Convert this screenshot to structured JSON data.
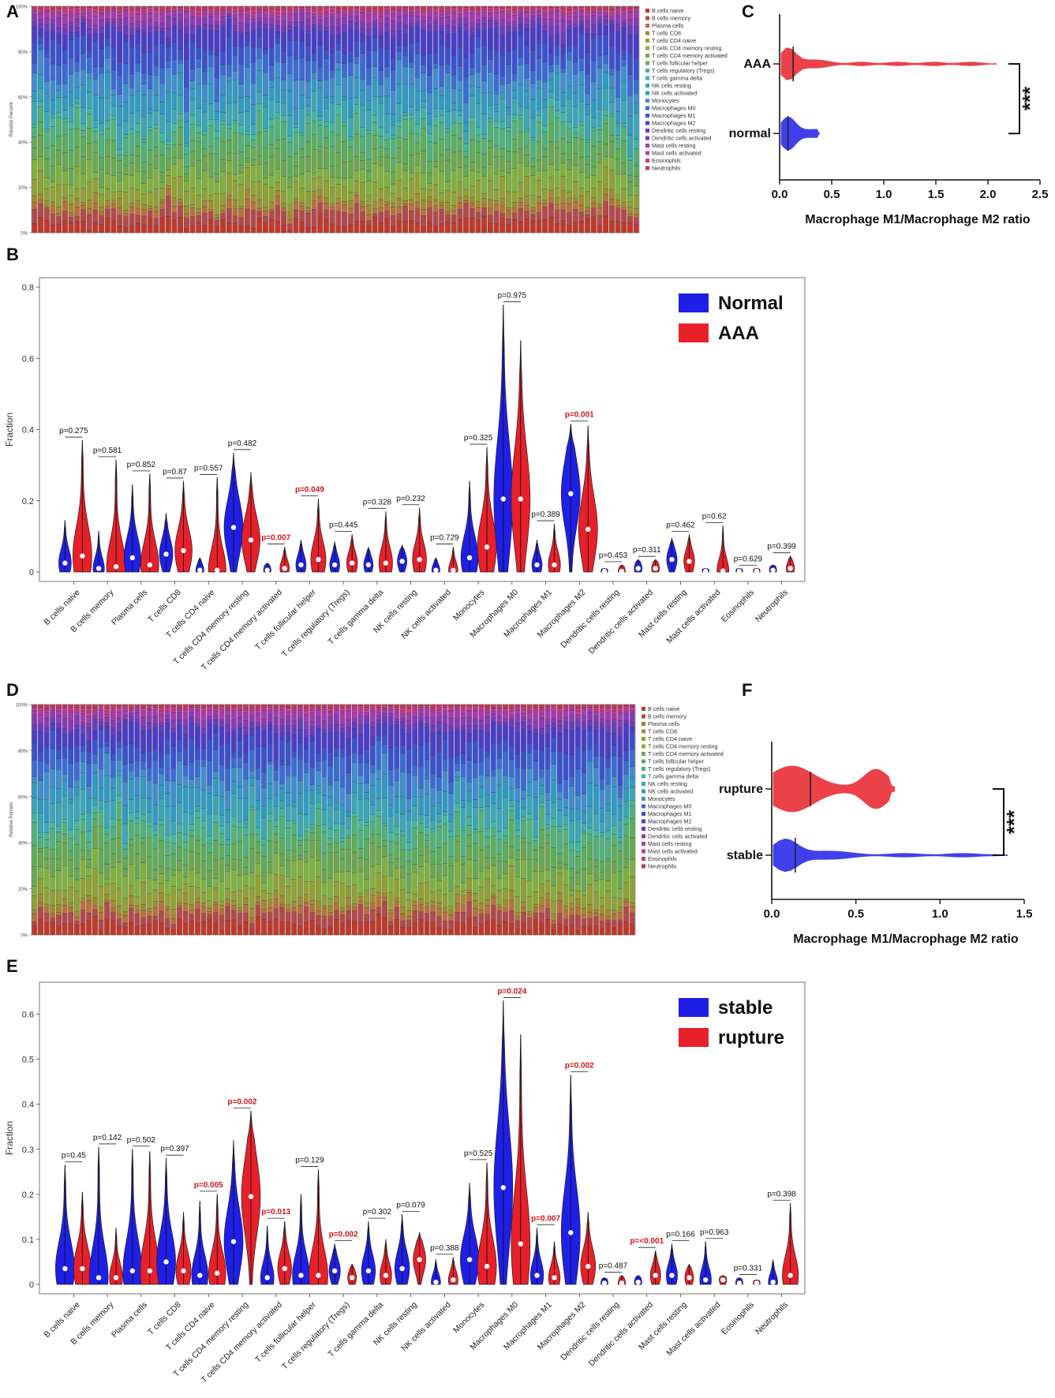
{
  "colors": {
    "normal": "#1f1fe8",
    "aaa": "#e8202a",
    "stable": "#1f1fe8",
    "rupture": "#e8202a",
    "significant_text": "#d0141c",
    "cell_palette": [
      "#c0392b",
      "#b5484a",
      "#b9713a",
      "#a08c2e",
      "#8fa232",
      "#7fb23c",
      "#6aa84f",
      "#5cae5a",
      "#4fb27a",
      "#3fb8a0",
      "#38a8b8",
      "#2e9cc4",
      "#3e8fd0",
      "#3a6cd6",
      "#3a52d0",
      "#4a3dc8",
      "#6a3cc0",
      "#8a3ab8",
      "#a63ab0",
      "#c03aa0",
      "#cc3a7a",
      "#c23a5a"
    ]
  },
  "chart_data": [
    {
      "panel": "A",
      "type": "bar",
      "stacked": true,
      "ylabel": "Relative Percent",
      "yticks": [
        "0%",
        "20%",
        "40%",
        "60%",
        "80%",
        "100%"
      ],
      "ylim": [
        0,
        100
      ],
      "n_samples": 100,
      "legend": [
        "B cells naive",
        "B cells memory",
        "Plasma cells",
        "T cells CD8",
        "T cells CD4 naive",
        "T cells CD4 memory resting",
        "T cells CD4 memory activated",
        "T cells follicular helper",
        "T cells regulatory (Tregs)",
        "T cells gamma delta",
        "NK cells resting",
        "NK cells activated",
        "Monocytes",
        "Macrophages M0",
        "Macrophages M1",
        "Macrophages M2",
        "Dendritic cells resting",
        "Dendritic cells activated",
        "Mast cells resting",
        "Mast cells activated",
        "Eosinophils",
        "Neutrophils"
      ],
      "legend_position": "right"
    },
    {
      "panel": "B",
      "type": "violin",
      "ylabel": "Fraction",
      "ylim": [
        0,
        0.8
      ],
      "yticks": [
        0,
        0.2,
        0.4,
        0.6,
        0.8
      ],
      "legend": [
        "Normal",
        "AAA"
      ],
      "legend_position": "top-right",
      "categories": [
        "B cells naive",
        "B cells memory",
        "Plasma cells",
        "T cells CD8",
        "T cells CD4 naive",
        "T cells CD4 memory resting",
        "T cells CD4 memory activated",
        "T cells follicular helper",
        "T cells regulatory (Tregs)",
        "T cells gamma delta",
        "NK cells resting",
        "NK cells activated",
        "Monocytes",
        "Macrophages M0",
        "Macrophages M1",
        "Macrophages M2",
        "Dendritic cells resting",
        "Dendritic cells activated",
        "Mast cells resting",
        "Mast cells activated",
        "Eosinophils",
        "Neutrophils"
      ],
      "pvalues": [
        "p=0.275",
        "p=0.581",
        "p=0.852",
        "p=0.87",
        "p=0.557",
        "p=0.482",
        "p=0.007",
        "p=0.049",
        "p=0.445",
        "p=0.328",
        "p=0.232",
        "p=0.729",
        "p=0.325",
        "p=0.975",
        "p=0.389",
        "p=0.001",
        "p=0.453",
        "p=0.311",
        "p=0.462",
        "p=0.62",
        "p=0.629",
        "p=0.399"
      ],
      "significant": [
        false,
        false,
        false,
        false,
        false,
        false,
        true,
        true,
        false,
        false,
        false,
        false,
        false,
        false,
        false,
        true,
        false,
        false,
        false,
        false,
        false,
        false
      ],
      "series": [
        {
          "name": "Normal",
          "max": [
            0.145,
            0.115,
            0.245,
            0.165,
            0.04,
            0.335,
            0.025,
            0.09,
            0.085,
            0.07,
            0.075,
            0.04,
            0.255,
            0.75,
            0.09,
            0.415,
            0.01,
            0.035,
            0.095,
            0.01,
            0.01,
            0.02
          ],
          "median": [
            0.025,
            0.01,
            0.04,
            0.05,
            0.005,
            0.125,
            0.005,
            0.02,
            0.02,
            0.02,
            0.03,
            0.005,
            0.04,
            0.205,
            0.02,
            0.22,
            0.002,
            0.01,
            0.035,
            0.002,
            0.002,
            0.005
          ]
        },
        {
          "name": "AAA",
          "max": [
            0.37,
            0.315,
            0.275,
            0.255,
            0.265,
            0.28,
            0.07,
            0.205,
            0.105,
            0.17,
            0.18,
            0.07,
            0.35,
            0.65,
            0.135,
            0.41,
            0.02,
            0.035,
            0.105,
            0.13,
            0.01,
            0.045
          ],
          "median": [
            0.045,
            0.015,
            0.02,
            0.06,
            0.005,
            0.09,
            0.01,
            0.035,
            0.025,
            0.025,
            0.035,
            0.005,
            0.07,
            0.205,
            0.02,
            0.12,
            0.002,
            0.01,
            0.03,
            0.003,
            0.002,
            0.01
          ]
        }
      ]
    },
    {
      "panel": "C",
      "type": "violin",
      "orientation": "horizontal",
      "xlabel": "Macrophage M1/Macrophage M2 ratio",
      "xlim": [
        0,
        2.5
      ],
      "xticks": [
        "0.0",
        "0.5",
        "1.0",
        "1.5",
        "2.0",
        "2.5"
      ],
      "groups": [
        "AAA",
        "normal"
      ],
      "significance": "***",
      "medians": [
        0.13,
        0.08
      ],
      "max": [
        2.08,
        0.38
      ]
    },
    {
      "panel": "D",
      "type": "bar",
      "stacked": true,
      "ylabel": "Relative Percent",
      "yticks": [
        "0%",
        "20%",
        "40%",
        "60%",
        "80%",
        "100%"
      ],
      "ylim": [
        0,
        100
      ],
      "n_samples": 100,
      "legend": [
        "B cells naive",
        "B cells memory",
        "Plasma cells",
        "T cells CD8",
        "T cells CD4 naive",
        "T cells CD4 memory resting",
        "T cells CD4 memory activated",
        "T cells follicular helper",
        "T cells regulatory (Tregs)",
        "T cells gamma delta",
        "NK cells resting",
        "NK cells activated",
        "Monocytes",
        "Macrophages M0",
        "Macrophages M1",
        "Macrophages M2",
        "Dendritic cells resting",
        "Dendritic cells activated",
        "Mast cells resting",
        "Mast cells activated",
        "Eosinophils",
        "Neutrophils"
      ],
      "legend_position": "right"
    },
    {
      "panel": "E",
      "type": "violin",
      "ylabel": "Fraction",
      "ylim": [
        0,
        0.65
      ],
      "yticks": [
        0,
        0.1,
        0.2,
        0.3,
        0.4,
        0.5,
        0.6
      ],
      "legend": [
        "stable",
        "rupture"
      ],
      "legend_position": "top-right",
      "categories": [
        "B cells naive",
        "B cells memory",
        "Plasma cells",
        "T cells CD8",
        "T cells CD4 naive",
        "T cells CD4 memory resting",
        "T cells CD4 memory activated",
        "T cells follicular helper",
        "T cells regulatory (Tregs)",
        "T cells gamma delta",
        "NK cells resting",
        "NK cells activated",
        "Monocytes",
        "Macrophages M0",
        "Macrophages M1",
        "Macrophages M2",
        "Dendritic cells resting",
        "Dendritic cells activated",
        "Mast cells resting",
        "Mast cells activated",
        "Eosinophils",
        "Neutrophils"
      ],
      "pvalues": [
        "p=0.45",
        "p=0.142",
        "p=0.502",
        "p=0.397",
        "p=0.005",
        "p=0.002",
        "p=0.013",
        "p=0.129",
        "p=0.002",
        "p=0.302",
        "p=0.079",
        "p=0.388",
        "p=0.525",
        "p=0.024",
        "p=0.007",
        "p=0.002",
        "p=0.487",
        "p=<0.001",
        "p=0.166",
        "p=0.963",
        "p=0.331",
        "p=0.398"
      ],
      "significant": [
        false,
        false,
        false,
        false,
        true,
        true,
        true,
        false,
        true,
        false,
        false,
        false,
        false,
        true,
        true,
        true,
        false,
        true,
        false,
        false,
        false,
        false
      ],
      "series": [
        {
          "name": "stable",
          "max": [
            0.265,
            0.305,
            0.3,
            0.28,
            0.185,
            0.32,
            0.13,
            0.2,
            0.09,
            0.14,
            0.155,
            0.055,
            0.225,
            0.63,
            0.125,
            0.465,
            0.015,
            0.02,
            0.09,
            0.095,
            0.015,
            0.055
          ],
          "median": [
            0.035,
            0.015,
            0.03,
            0.05,
            0.02,
            0.095,
            0.015,
            0.02,
            0.03,
            0.03,
            0.035,
            0.005,
            0.055,
            0.215,
            0.02,
            0.115,
            0.003,
            0.005,
            0.02,
            0.01,
            0.003,
            0.005
          ]
        },
        {
          "name": "rupture",
          "max": [
            0.205,
            0.125,
            0.295,
            0.16,
            0.2,
            0.385,
            0.14,
            0.255,
            0.045,
            0.1,
            0.115,
            0.06,
            0.27,
            0.555,
            0.095,
            0.16,
            0.02,
            0.075,
            0.045,
            0.02,
            0.01,
            0.18
          ],
          "median": [
            0.035,
            0.015,
            0.03,
            0.03,
            0.025,
            0.195,
            0.035,
            0.02,
            0.015,
            0.02,
            0.055,
            0.01,
            0.04,
            0.09,
            0.015,
            0.04,
            0.003,
            0.02,
            0.015,
            0.01,
            0.003,
            0.02
          ]
        }
      ]
    },
    {
      "panel": "F",
      "type": "violin",
      "orientation": "horizontal",
      "xlabel": "Macrophage M1/Macrophage M2 ratio",
      "xlim": [
        0,
        1.5
      ],
      "xticks": [
        "0.0",
        "0.5",
        "1.0",
        "1.5"
      ],
      "groups": [
        "rupture",
        "stable"
      ],
      "significance": "***",
      "medians": [
        0.23,
        0.14
      ],
      "max": [
        0.73,
        1.4
      ]
    }
  ]
}
